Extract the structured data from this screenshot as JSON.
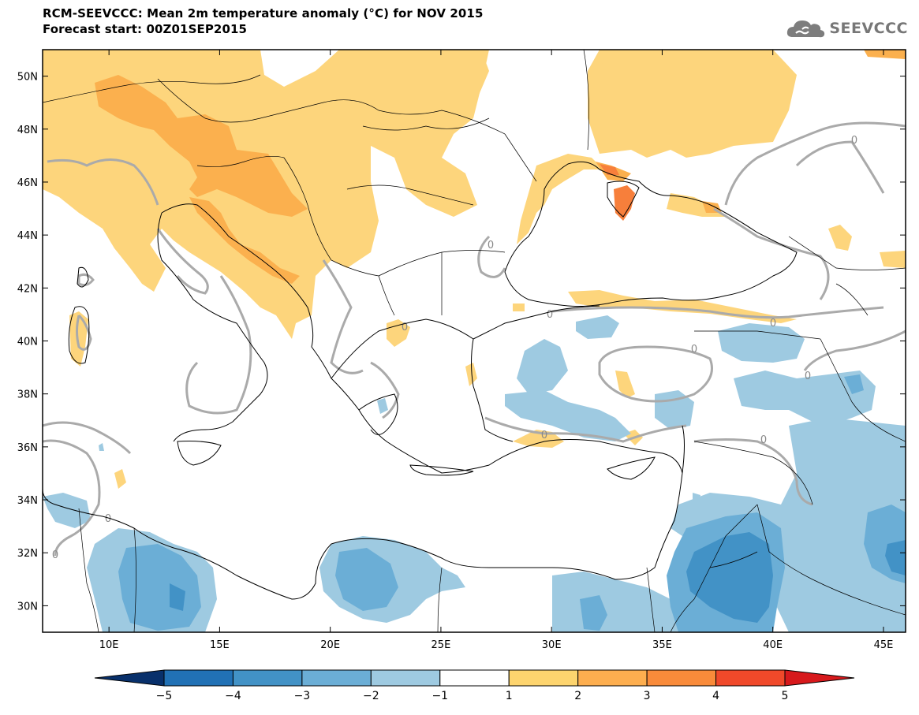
{
  "header": {
    "title": "RCM-SEEVCCC: Mean 2m temperature anomaly (°C) for NOV 2015",
    "subtitle": "Forecast start: 00Z01SEP2015"
  },
  "logo": {
    "text": "SEEVCCC",
    "icon": "cloud-icon"
  },
  "map": {
    "lon_range": [
      7,
      46
    ],
    "lat_range": [
      29,
      51
    ],
    "lat_ticks": [
      {
        "value": 50,
        "label": "50N"
      },
      {
        "value": 48,
        "label": "48N"
      },
      {
        "value": 46,
        "label": "46N"
      },
      {
        "value": 44,
        "label": "44N"
      },
      {
        "value": 42,
        "label": "42N"
      },
      {
        "value": 40,
        "label": "40N"
      },
      {
        "value": 38,
        "label": "38N"
      },
      {
        "value": 36,
        "label": "36N"
      },
      {
        "value": 34,
        "label": "34N"
      },
      {
        "value": 32,
        "label": "32N"
      },
      {
        "value": 30,
        "label": "30N"
      }
    ],
    "lon_ticks": [
      {
        "value": 10,
        "label": "10E"
      },
      {
        "value": 15,
        "label": "15E"
      },
      {
        "value": 20,
        "label": "20E"
      },
      {
        "value": 25,
        "label": "25E"
      },
      {
        "value": 30,
        "label": "30E"
      },
      {
        "value": 35,
        "label": "35E"
      },
      {
        "value": 40,
        "label": "40E"
      },
      {
        "value": 45,
        "label": "45E"
      }
    ],
    "contour_label": "0"
  },
  "colorbar": {
    "labels": [
      "−5",
      "−4",
      "−3",
      "−2",
      "−1",
      "1",
      "2",
      "3",
      "4",
      "5"
    ],
    "colors": [
      "#08306b",
      "#2171b5",
      "#4292c6",
      "#6baed6",
      "#9ecae1",
      "#ffffff",
      "#fdd46e",
      "#fdae4f",
      "#f98b3a",
      "#f0492a",
      "#d7191c"
    ]
  },
  "colors": {
    "warm1": "#fdd57c",
    "warm2": "#fbb04e",
    "warm3": "#f77f3b",
    "warm4": "#f0492a",
    "cool1": "#9ecae1",
    "cool2": "#6baed6",
    "cool3": "#4292c6",
    "cool4": "#2b6fb0",
    "contour": "#aaaaaa"
  }
}
